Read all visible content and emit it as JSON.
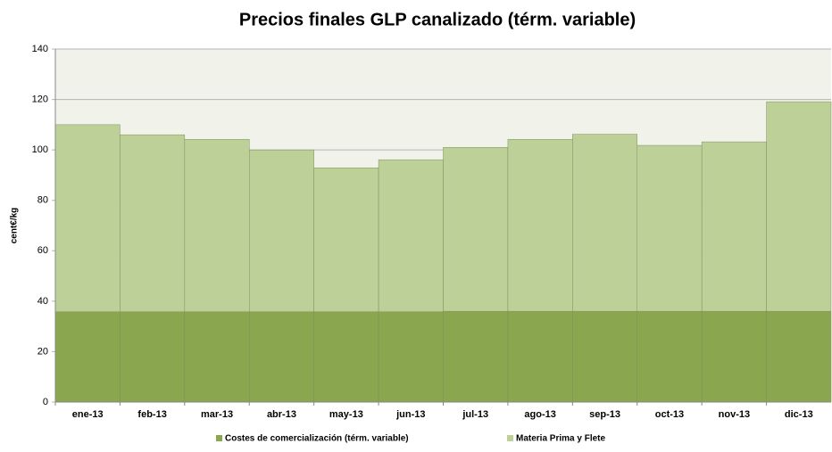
{
  "chart_data": {
    "type": "stacked_bar",
    "title": "Precios finales GLP canalizado (térm. variable)",
    "y_label": "cent€/kg",
    "categories": [
      "ene-13",
      "feb-13",
      "mar-13",
      "abr-13",
      "may-13",
      "jun-13",
      "jul-13",
      "ago-13",
      "sep-13",
      "oct-13",
      "nov-13",
      "dic-13"
    ],
    "series": [
      {
        "name": "Costes de comercialización (térm. variable)",
        "color": "#8aa64e",
        "values": [
          35.8,
          35.8,
          35.8,
          35.8,
          35.8,
          35.8,
          36,
          36,
          36,
          36,
          36,
          36
        ]
      },
      {
        "name": "Materia Prima y Flete",
        "color": "#bcd098",
        "values": [
          74.2,
          70.2,
          68.4,
          64.2,
          57.1,
          60.3,
          65,
          68.2,
          70.2,
          65.8,
          67.2,
          83.1
        ]
      }
    ],
    "ylim": [
      0,
      140
    ],
    "yticks": [
      0,
      20,
      40,
      60,
      80,
      100,
      120,
      140
    ],
    "grid": true,
    "legend": "bottom"
  }
}
